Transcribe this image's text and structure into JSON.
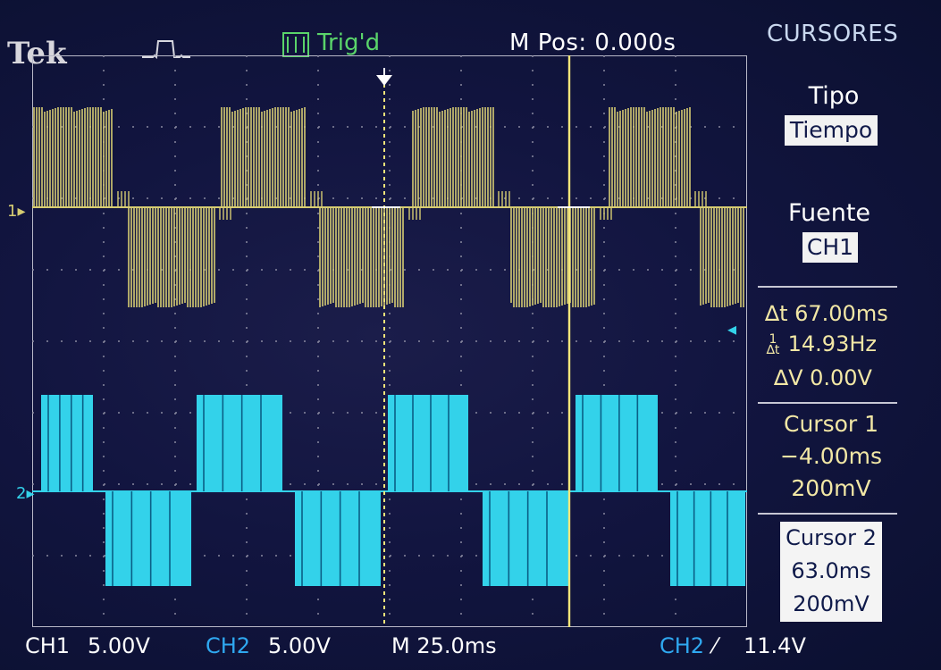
{
  "header": {
    "brand": "Tek",
    "trigger_status": "Trig'd",
    "position": "M Pos: 0.000s",
    "menu_title": "CURSORES"
  },
  "menu": {
    "type_label": "Tipo",
    "type_value": "Tiempo",
    "source_label": "Fuente",
    "source_value": "CH1",
    "delta_t": "67.00ms",
    "inverse_delta_t": "14.93Hz",
    "delta_v": "0.00V",
    "cursor1": {
      "title": "Cursor 1",
      "time": "−4.00ms",
      "value": "200mV"
    },
    "cursor2": {
      "title": "Cursor 2",
      "time": "63.0ms",
      "value": "200mV"
    }
  },
  "channel_markers": {
    "ch1": "1",
    "ch2": "2"
  },
  "footer": {
    "ch1_label": "CH1",
    "ch1_scale": "5.00V",
    "ch2_label": "CH2",
    "ch2_scale": "5.00V",
    "timebase": "M 25.0ms",
    "trigger_source": "CH2",
    "trigger_level": "11.4V"
  },
  "colors": {
    "ch1_trace": "#d6cc72",
    "ch2_trace": "#33d2ea",
    "trig_status": "#5ad46a",
    "cursor": "#f5e67a",
    "readout": "#f2e7a5"
  },
  "icons": {
    "trigger_edge": "rising-edge-pulse-icon",
    "trigger_position": "down-arrow-icon",
    "level_marker": "left-arrow-icon"
  }
}
